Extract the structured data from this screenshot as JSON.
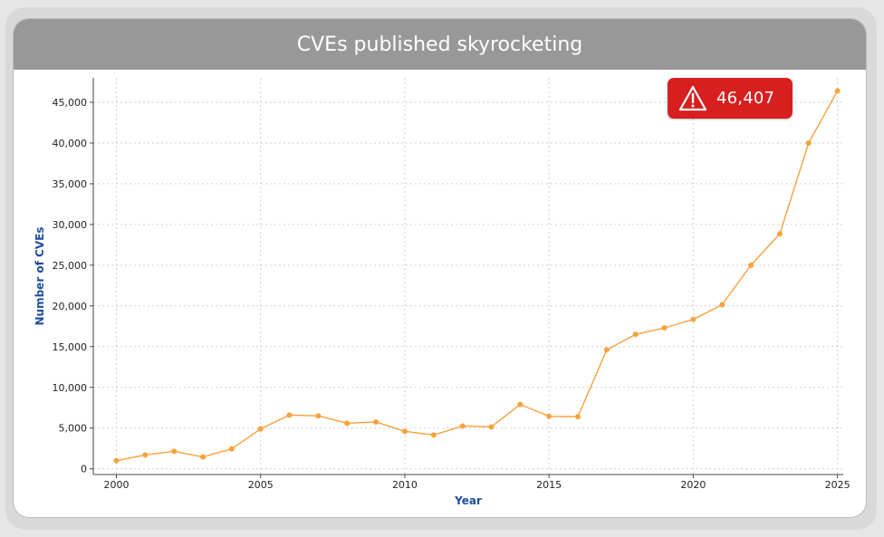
{
  "header": {
    "title": "CVEs published skyrocketing"
  },
  "badge": {
    "icon": "warning-triangle-icon",
    "value_label": "46,407",
    "color": "#d71f1f"
  },
  "colors": {
    "line": "#f7a23c",
    "axis_label": "#1f4e9c",
    "header": "#989898"
  },
  "chart_data": {
    "type": "line",
    "title": "CVEs published skyrocketing",
    "xlabel": "Year",
    "ylabel": "Number of CVEs",
    "xlim": [
      1999.2,
      2025.2
    ],
    "ylim": [
      -700,
      48000
    ],
    "x_ticks": [
      2000,
      2005,
      2010,
      2015,
      2020,
      2025
    ],
    "x_tick_labels": [
      "2000",
      "2005",
      "2010",
      "2015",
      "2020",
      "2025"
    ],
    "y_ticks": [
      0,
      5000,
      10000,
      15000,
      20000,
      25000,
      30000,
      35000,
      40000,
      45000
    ],
    "y_tick_labels": [
      "0",
      "5,000",
      "10,000",
      "15,000",
      "20,000",
      "25,000",
      "30,000",
      "35,000",
      "40,000",
      "45,000"
    ],
    "grid": true,
    "series": [
      {
        "x": [
          2000,
          2001,
          2002,
          2003,
          2004,
          2005,
          2006,
          2007,
          2008,
          2009,
          2010,
          2011,
          2012,
          2013,
          2014,
          2015,
          2016,
          2017,
          2018,
          2019,
          2020,
          2021,
          2022,
          2023,
          2024,
          2025
        ],
        "values": [
          1000,
          1700,
          2150,
          1450,
          2450,
          4900,
          6600,
          6500,
          5600,
          5750,
          4600,
          4150,
          5250,
          5150,
          7900,
          6450,
          6400,
          14600,
          16500,
          17300,
          18350,
          20150,
          25000,
          28850,
          40000,
          46407
        ]
      }
    ]
  }
}
